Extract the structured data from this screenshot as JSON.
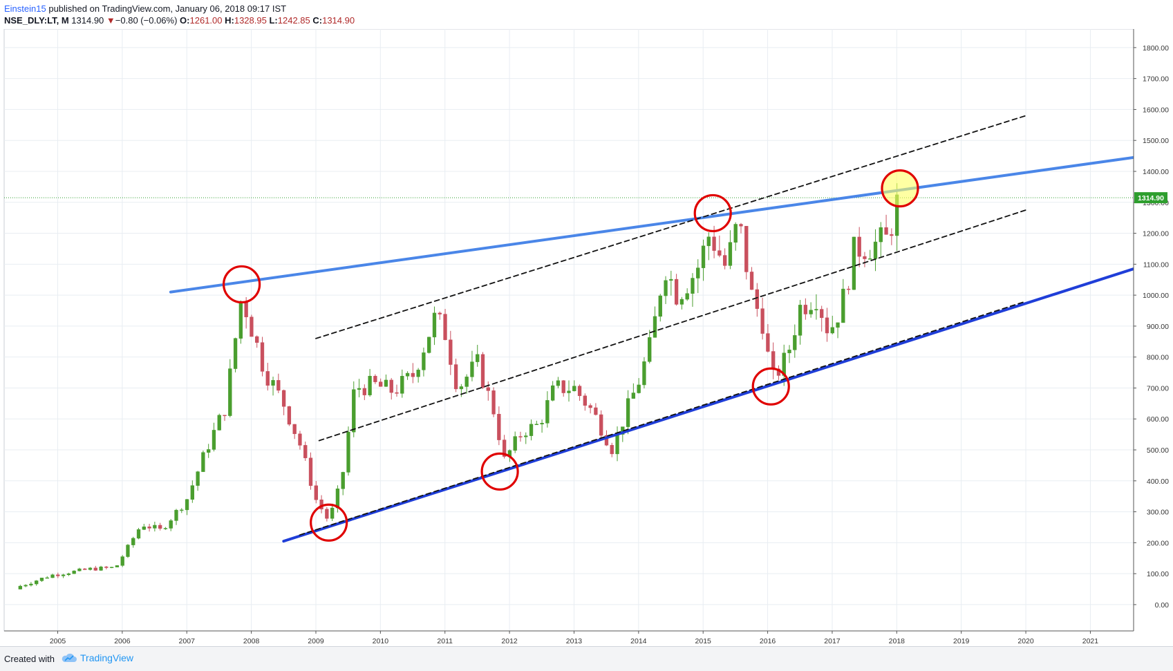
{
  "header": {
    "author": "Einstein15",
    "published_text": "published on TradingView.com, January 06, 2018 09:17 IST",
    "symbol": "NSE_DLY:LT, M",
    "last": "1314.90",
    "change_arrow": "▼",
    "change": "−0.80 (−0.06%)",
    "o_label": "O:",
    "o_value": "1261.00",
    "h_label": "H:",
    "h_value": "1328.95",
    "l_label": "L:",
    "l_value": "1242.85",
    "c_label": "C:",
    "c_value": "1314.90"
  },
  "footer": {
    "created_with": "Created with",
    "brand": "TradingView",
    "brand_icon": "tradingview-cloud-icon"
  },
  "colors": {
    "up": "#4a9e2f",
    "down": "#c9505e",
    "upper_trend": "#4a86e8",
    "lower_trend": "#1f3ed8",
    "channel": "#111111",
    "circle": "#e00000",
    "highlight": "#ffff66",
    "price_line": "#2e9e2e",
    "grid": "#e8edf2"
  },
  "chart_data": {
    "type": "candlestick",
    "interval": "monthly",
    "xlim": [
      2004.17,
      2021.67
    ],
    "ylim": [
      -85,
      1860
    ],
    "x_ticks": [
      "2005",
      "2006",
      "2007",
      "2008",
      "2009",
      "2010",
      "2011",
      "2012",
      "2013",
      "2014",
      "2015",
      "2016",
      "2017",
      "2018",
      "2019",
      "2020",
      "2021"
    ],
    "y_ticks": [
      "1800.00",
      "1700.00",
      "1600.00",
      "1500.00",
      "1400.00",
      "1300.00",
      "1200.00",
      "1100.00",
      "1000.00",
      "900.00",
      "800.00",
      "700.00",
      "600.00",
      "500.00",
      "400.00",
      "300.00",
      "200.00",
      "100.00",
      "0.00"
    ],
    "last_price": 1314.9,
    "last_price_label": "1314.90",
    "anchors": [
      [
        2004.42,
        60
      ],
      [
        2004.9,
        95
      ],
      [
        2005.5,
        115
      ],
      [
        2005.9,
        120
      ],
      [
        2006.3,
        260
      ],
      [
        2006.6,
        240
      ],
      [
        2007.0,
        340
      ],
      [
        2007.3,
        500
      ],
      [
        2007.6,
        640
      ],
      [
        2007.85,
        1000
      ],
      [
        2008.2,
        760
      ],
      [
        2008.5,
        650
      ],
      [
        2008.75,
        520
      ],
      [
        2009.0,
        340
      ],
      [
        2009.2,
        270
      ],
      [
        2009.4,
        400
      ],
      [
        2009.6,
        700
      ],
      [
        2009.9,
        710
      ],
      [
        2010.2,
        690
      ],
      [
        2010.5,
        740
      ],
      [
        2010.85,
        930
      ],
      [
        2011.0,
        880
      ],
      [
        2011.2,
        700
      ],
      [
        2011.5,
        780
      ],
      [
        2011.8,
        600
      ],
      [
        2011.9,
        460
      ],
      [
        2012.2,
        560
      ],
      [
        2012.45,
        580
      ],
      [
        2012.7,
        700
      ],
      [
        2013.0,
        700
      ],
      [
        2013.3,
        620
      ],
      [
        2013.6,
        500
      ],
      [
        2013.8,
        620
      ],
      [
        2014.0,
        720
      ],
      [
        2014.2,
        850
      ],
      [
        2014.4,
        1100
      ],
      [
        2014.6,
        1000
      ],
      [
        2014.9,
        1080
      ],
      [
        2015.1,
        1200
      ],
      [
        2015.35,
        1090
      ],
      [
        2015.55,
        1240
      ],
      [
        2015.75,
        1000
      ],
      [
        2015.95,
        900
      ],
      [
        2016.05,
        720
      ],
      [
        2016.3,
        800
      ],
      [
        2016.5,
        960
      ],
      [
        2016.75,
        1000
      ],
      [
        2016.95,
        880
      ],
      [
        2017.15,
        970
      ],
      [
        2017.35,
        1150
      ],
      [
        2017.6,
        1160
      ],
      [
        2017.85,
        1180
      ],
      [
        2018.03,
        1314.9
      ]
    ],
    "trendlines": [
      {
        "name": "upper-resistance",
        "p1": [
          2006.75,
          1010
        ],
        "p2": [
          2021.67,
          1445
        ],
        "style": "solid",
        "width": 4
      },
      {
        "name": "lower-support",
        "p1": [
          2008.5,
          205
        ],
        "p2": [
          2021.67,
          1085
        ],
        "style": "solid",
        "width": 4
      },
      {
        "name": "channel-lower-dashed",
        "p1": [
          2008.75,
          225
        ],
        "p2": [
          2020.0,
          980
        ],
        "style": "dashed",
        "width": 1.8
      },
      {
        "name": "channel-mid-dashed",
        "p1": [
          2009.05,
          530
        ],
        "p2": [
          2020.0,
          1275
        ],
        "style": "dashed",
        "width": 1.8
      },
      {
        "name": "channel-upper-dashed",
        "p1": [
          2009.0,
          860
        ],
        "p2": [
          2020.0,
          1580
        ],
        "style": "dashed",
        "width": 1.8
      }
    ],
    "annotations": [
      {
        "type": "circle",
        "x": 2007.85,
        "y": 1035,
        "style": "red-ring"
      },
      {
        "type": "circle",
        "x": 2009.2,
        "y": 265,
        "style": "red-ring"
      },
      {
        "type": "circle",
        "x": 2011.85,
        "y": 430,
        "style": "red-ring"
      },
      {
        "type": "circle",
        "x": 2015.15,
        "y": 1265,
        "style": "red-ring"
      },
      {
        "type": "circle",
        "x": 2016.05,
        "y": 705,
        "style": "red-ring"
      },
      {
        "type": "circle",
        "x": 2018.05,
        "y": 1345,
        "style": "yellow-filled"
      }
    ]
  }
}
